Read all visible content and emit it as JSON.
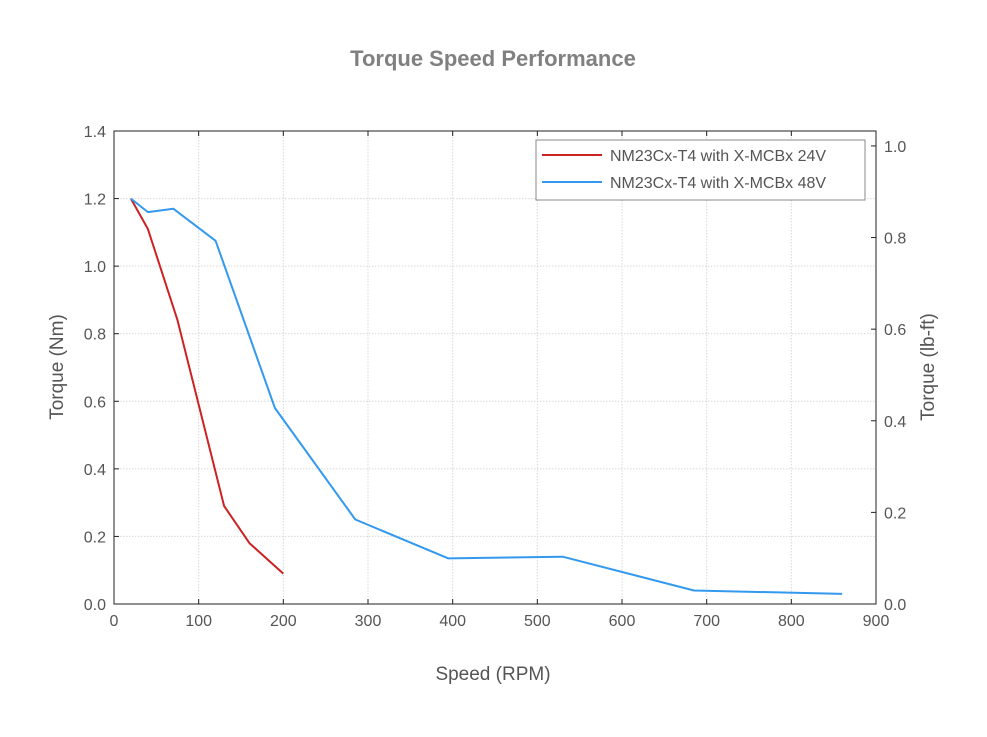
{
  "chart_data": {
    "type": "line",
    "title": "Torque Speed Performance",
    "xlabel": "Speed (RPM)",
    "ylabel": "Torque (Nm)",
    "y2label": "Torque (lb-ft)",
    "xlim": [
      0,
      900
    ],
    "ylim": [
      0,
      1.4
    ],
    "y2lim": [
      0,
      1.0326
    ],
    "x_ticks": [
      0,
      100,
      200,
      300,
      400,
      500,
      600,
      700,
      800,
      900
    ],
    "y_ticks": [
      "0.0",
      "0.2",
      "0.4",
      "0.6",
      "0.8",
      "1.0",
      "1.2",
      "1.4"
    ],
    "y2_ticks": [
      "0.0",
      "0.2",
      "0.4",
      "0.6",
      "0.8",
      "1.0"
    ],
    "grid": true,
    "legend_position": "top-right",
    "series": [
      {
        "name": "NM23Cx-T4 with X-MCBx 24V",
        "color": "#cc2222",
        "x": [
          20,
          40,
          75,
          130,
          160,
          200
        ],
        "y": [
          1.2,
          1.11,
          0.84,
          0.29,
          0.18,
          0.09
        ]
      },
      {
        "name": "NM23Cx-T4 with X-MCBx 48V",
        "color": "#3399ee",
        "x": [
          20,
          40,
          70,
          120,
          190,
          285,
          395,
          530,
          685,
          860
        ],
        "y": [
          1.2,
          1.16,
          1.17,
          1.075,
          0.58,
          0.25,
          0.135,
          0.14,
          0.04,
          0.03
        ]
      }
    ]
  }
}
